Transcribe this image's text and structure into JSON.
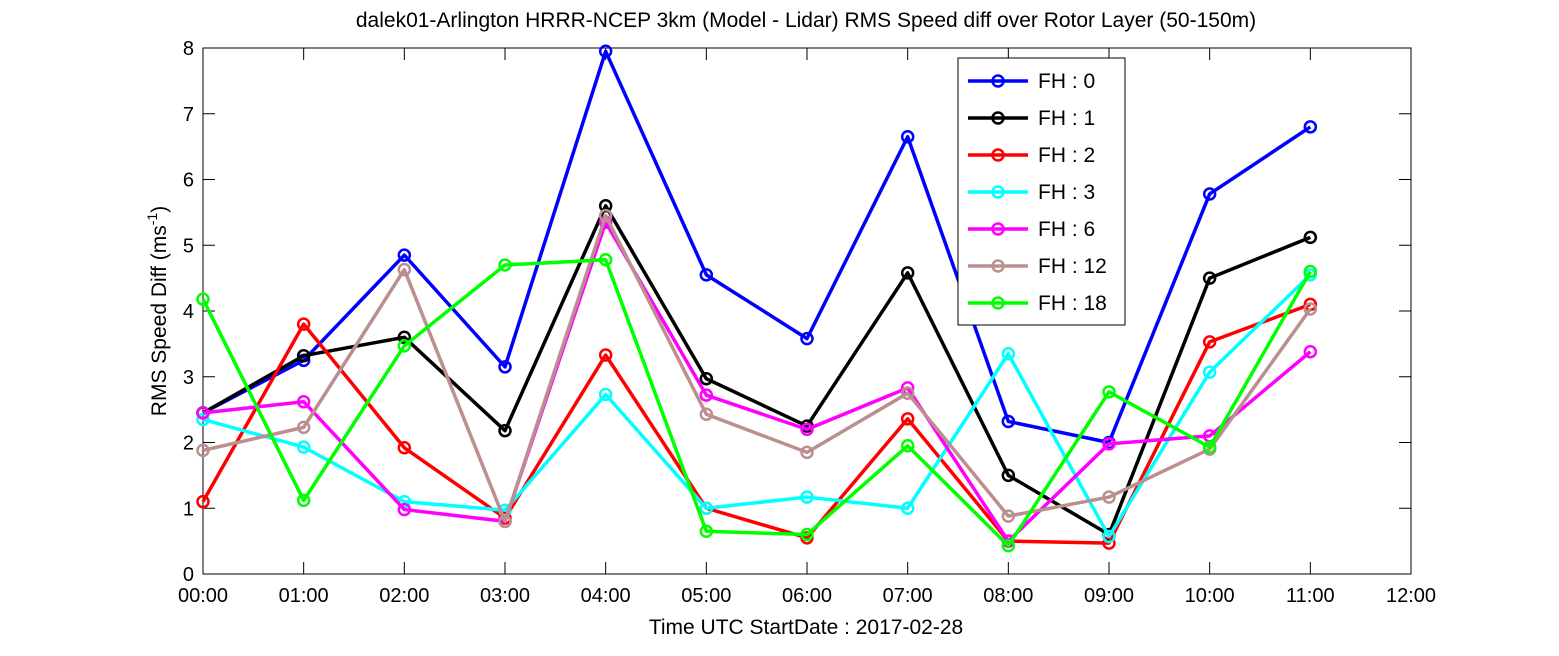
{
  "chart_data": {
    "type": "line",
    "title": "dalek01-Arlington HRRR-NCEP 3km (Model - Lidar) RMS Speed diff over Rotor Layer (50-150m)",
    "xlabel": "Time UTC    StartDate : 2017-02-28",
    "ylabel_main": "RMS Speed Diff (ms",
    "ylabel_sup": "-1",
    "ylabel_close": ")",
    "xlim": [
      0,
      12
    ],
    "ylim": [
      0,
      8
    ],
    "x_ticks": [
      0,
      1,
      2,
      3,
      4,
      5,
      6,
      7,
      8,
      9,
      10,
      11,
      12
    ],
    "x_tick_labels": [
      "00:00",
      "01:00",
      "02:00",
      "03:00",
      "04:00",
      "05:00",
      "06:00",
      "07:00",
      "08:00",
      "09:00",
      "10:00",
      "11:00",
      "12:00"
    ],
    "y_ticks": [
      0,
      1,
      2,
      3,
      4,
      5,
      6,
      7,
      8
    ],
    "y_tick_labels": [
      "0",
      "1",
      "2",
      "3",
      "4",
      "5",
      "6",
      "7",
      "8"
    ],
    "x": [
      0,
      1,
      2,
      3,
      4,
      5,
      6,
      7,
      8,
      9,
      10,
      11
    ],
    "legend_position": "top-right",
    "grid": false,
    "series": [
      {
        "name": "FH : 0",
        "color": "#0000ff",
        "values": [
          2.45,
          3.25,
          4.85,
          3.15,
          7.95,
          4.55,
          3.58,
          6.65,
          2.32,
          2.0,
          5.78,
          6.8
        ]
      },
      {
        "name": "FH : 1",
        "color": "#000000",
        "values": [
          2.45,
          3.32,
          3.6,
          2.18,
          5.6,
          2.97,
          2.25,
          4.58,
          1.5,
          0.6,
          4.5,
          5.12
        ]
      },
      {
        "name": "FH : 2",
        "color": "#ff0000",
        "values": [
          1.1,
          3.8,
          1.92,
          0.85,
          3.33,
          1.0,
          0.55,
          2.36,
          0.5,
          0.47,
          3.53,
          4.1
        ]
      },
      {
        "name": "FH : 3",
        "color": "#00ffff",
        "values": [
          2.35,
          1.93,
          1.1,
          0.97,
          2.73,
          1.0,
          1.17,
          1.0,
          3.35,
          0.57,
          3.07,
          4.55
        ]
      },
      {
        "name": "FH : 6",
        "color": "#ff00ff",
        "values": [
          2.45,
          2.62,
          0.98,
          0.8,
          5.35,
          2.72,
          2.2,
          2.83,
          0.5,
          1.98,
          2.1,
          3.38
        ]
      },
      {
        "name": "FH : 12",
        "color": "#bc8f8f",
        "values": [
          1.88,
          2.23,
          4.63,
          0.8,
          5.45,
          2.43,
          1.85,
          2.75,
          0.88,
          1.17,
          1.9,
          4.03
        ]
      },
      {
        "name": "FH : 18",
        "color": "#00ff00",
        "values": [
          4.18,
          1.12,
          3.47,
          4.7,
          4.78,
          0.65,
          0.6,
          1.95,
          0.43,
          2.77,
          1.93,
          4.6
        ]
      }
    ]
  }
}
